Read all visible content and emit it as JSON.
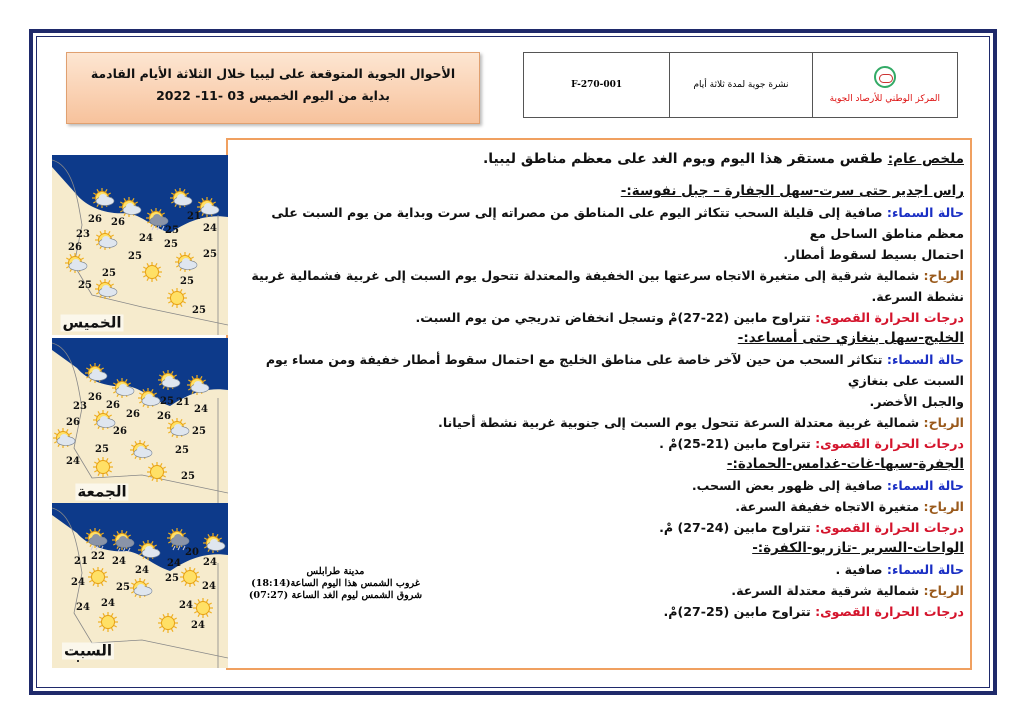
{
  "header": {
    "title_line1": "الأحوال الجوية المتوقعة على ليبيا خلال الثلاثة الأيام القادمة",
    "title_line2": "بداية من اليوم الخميس 03 -11- 2022",
    "org_name": "المركز الوطني للأرصاد الجوية",
    "bulletin_name": "نشرة جوية لمدة ثلاثة أيام",
    "form_code": "F-270-001"
  },
  "summary": {
    "label": "ملخص عام:",
    "text": "  طقس مستقر هذا اليوم ويوم الغد على معظم مناطق ليبيا."
  },
  "labels": {
    "sky": "حالة السماء:",
    "wind": "الرياح:",
    "temp": "درجات الحرارة القصوى:"
  },
  "regions": [
    {
      "heading": "راس اجدير حتى سرت-سهل الجفارة – جبل نفوسة:-",
      "sky": " صافية إلى قليلة السحب تتكاثر اليوم على المناطق من مصراته إلى سرت وبداية من يوم السبت على معظم مناطق الساحل مع",
      "sky_cont": "احتمال بسيط لسقوط أمطار.",
      "wind": " شمالية شرقية إلى متغيرة الاتجاه سرعتها بين الخفيفة والمعتدلة تتحول يوم السبت إلى غربية فشمالية غربية نشطة السرعة.",
      "temp": " تتراوح مابين (22-27)مْ وتسجل انخفاض تدريجي من يوم السبت."
    },
    {
      "heading": "الخليج-سهل بنغازي حتى أمساعد:-",
      "sky": " تتكاثر السحب من حين لآخر خاصة على مناطق الخليج مع احتمال سقوط أمطار خفيفة ومن مساء يوم السبت على بنغازي",
      "sky_cont": "والجبل الأخضر.",
      "wind": " شمالية غربية معتدلة السرعة تتحول يوم السبت إلى جنوبية غربية نشطة أحيانا.",
      "temp": " تتراوح مابين (21-25)مْ ."
    },
    {
      "heading": "الجفرة-سبها-غات-غدامس-الحمادة:-",
      "sky": " صافية إلى ظهور بعض السحب.",
      "wind": " متغيرة الاتجاه خفيفة السرعة.",
      "temp": " تتراوح مابين (24-27) مْ."
    },
    {
      "heading": "الواحات-السرير -تازربو-الكفرة:-",
      "sky": " صافية .",
      "wind": " شمالية شرقية معتدلة السرعة.",
      "temp": " تتراوح مابين (25-27)مْ."
    }
  ],
  "sun_info": {
    "city": "مدينة طرابلس",
    "sunset": "غروب الشمس هذا اليوم الساعة(18:14)",
    "sunrise": "شروق الشمس ليوم الغد الساعة (07:27)"
  },
  "maps": [
    {
      "day": "الخميس",
      "temps": [
        26,
        26,
        23,
        26,
        24,
        25,
        21,
        24,
        25,
        25,
        25,
        25,
        25,
        25,
        25
      ],
      "icons": [
        "partly-cloudy",
        "partly-cloudy",
        "partly-cloudy",
        "partly-cloudy",
        "storm",
        "partly-cloudy",
        "partly-cloudy",
        "sunny",
        "partly-cloudy",
        "partly-cloudy",
        "sunny"
      ]
    },
    {
      "day": "الجمعة",
      "temps": [
        26,
        23,
        26,
        26,
        26,
        26,
        25,
        21,
        24,
        26,
        25,
        25,
        25,
        24,
        25
      ],
      "icons": [
        "partly-cloudy",
        "partly-cloudy",
        "partly-cloudy",
        "partly-cloudy",
        "partly-cloudy",
        "partly-cloudy",
        "partly-cloudy",
        "partly-cloudy",
        "partly-cloudy",
        "sunny",
        "sunny"
      ]
    },
    {
      "day": "السبت",
      "temps": [
        21,
        22,
        24,
        24,
        24,
        24,
        20,
        24,
        25,
        24,
        25,
        24,
        24,
        24,
        24
      ],
      "icons": [
        "storm",
        "storm",
        "partly-cloudy",
        "storm",
        "partly-cloudy",
        "sunny",
        "partly-cloudy",
        "sunny",
        "sunny",
        "sunny",
        "sunny"
      ]
    }
  ],
  "colors": {
    "frame": "#1f2a6b",
    "box_border": "#f0a060",
    "sky_label": "#1a2fc4",
    "wind_label": "#9a5a1c",
    "temp_label": "#d4142c",
    "sea": "#0d3a8a",
    "land": "#f6ebcd"
  }
}
